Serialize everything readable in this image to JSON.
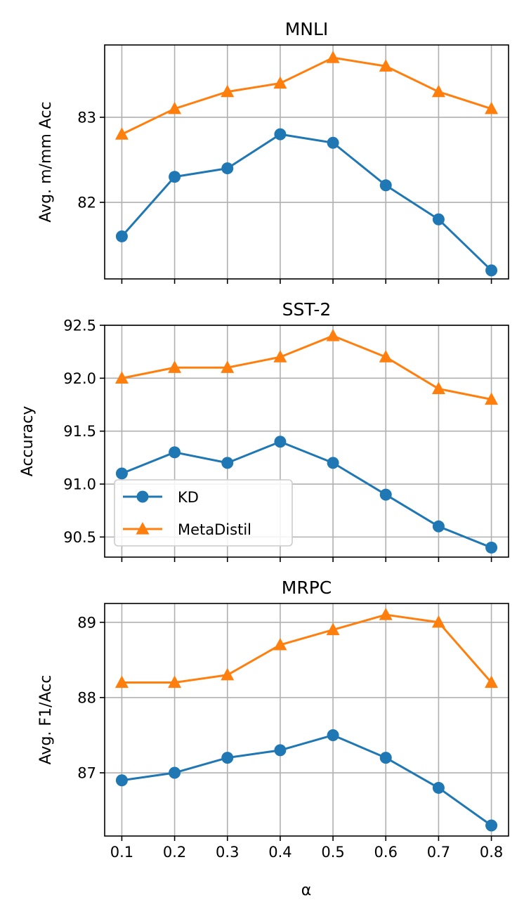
{
  "x_label": "α",
  "x_ticks": [
    "0.1",
    "0.2",
    "0.3",
    "0.4",
    "0.5",
    "0.6",
    "0.7",
    "0.8"
  ],
  "colors": {
    "kd": "#1f77b4",
    "metadistil": "#ff7f0e",
    "grid": "#b0b0b0"
  },
  "legend": {
    "placement": "lower-left",
    "panel": 1,
    "entries": [
      "KD",
      "MetaDistil"
    ]
  },
  "chart_data": [
    {
      "type": "line",
      "title": "MNLI",
      "ylabel": "Avg. m/mm Acc",
      "xlabel": "α",
      "x": [
        0.1,
        0.2,
        0.3,
        0.4,
        0.5,
        0.6,
        0.7,
        0.8
      ],
      "ylim": [
        81.1,
        83.85
      ],
      "yticks": [
        82,
        83
      ],
      "ytick_labels": [
        "82",
        "83"
      ],
      "grid": true,
      "series": [
        {
          "name": "KD",
          "marker": "circle",
          "values": [
            81.6,
            82.3,
            82.4,
            82.8,
            82.7,
            82.2,
            81.8,
            81.2
          ]
        },
        {
          "name": "MetaDistil",
          "marker": "triangle",
          "values": [
            82.8,
            83.1,
            83.3,
            83.4,
            83.7,
            83.6,
            83.3,
            83.1
          ]
        }
      ]
    },
    {
      "type": "line",
      "title": "SST-2",
      "ylabel": "Accuracy",
      "xlabel": "α",
      "x": [
        0.1,
        0.2,
        0.3,
        0.4,
        0.5,
        0.6,
        0.7,
        0.8
      ],
      "ylim": [
        90.31,
        92.5
      ],
      "yticks": [
        90.5,
        91.0,
        91.5,
        92.0,
        92.5
      ],
      "ytick_labels": [
        "90.5",
        "91.0",
        "91.5",
        "92.0",
        "92.5"
      ],
      "grid": true,
      "series": [
        {
          "name": "KD",
          "marker": "circle",
          "values": [
            91.1,
            91.3,
            91.2,
            91.4,
            91.2,
            90.9,
            90.6,
            90.4
          ]
        },
        {
          "name": "MetaDistil",
          "marker": "triangle",
          "values": [
            92.0,
            92.1,
            92.1,
            92.2,
            92.4,
            92.2,
            91.9,
            91.8
          ]
        }
      ]
    },
    {
      "type": "line",
      "title": "MRPC",
      "ylabel": "Avg. F1/Acc",
      "xlabel": "α",
      "x": [
        0.1,
        0.2,
        0.3,
        0.4,
        0.5,
        0.6,
        0.7,
        0.8
      ],
      "ylim": [
        86.16,
        89.25
      ],
      "yticks": [
        87,
        88,
        89
      ],
      "ytick_labels": [
        "87",
        "88",
        "89"
      ],
      "grid": true,
      "series": [
        {
          "name": "KD",
          "marker": "circle",
          "values": [
            86.9,
            87.0,
            87.2,
            87.3,
            87.5,
            87.2,
            86.8,
            86.3
          ]
        },
        {
          "name": "MetaDistil",
          "marker": "triangle",
          "values": [
            88.2,
            88.2,
            88.3,
            88.7,
            88.9,
            89.1,
            89.0,
            88.2
          ]
        }
      ]
    }
  ]
}
